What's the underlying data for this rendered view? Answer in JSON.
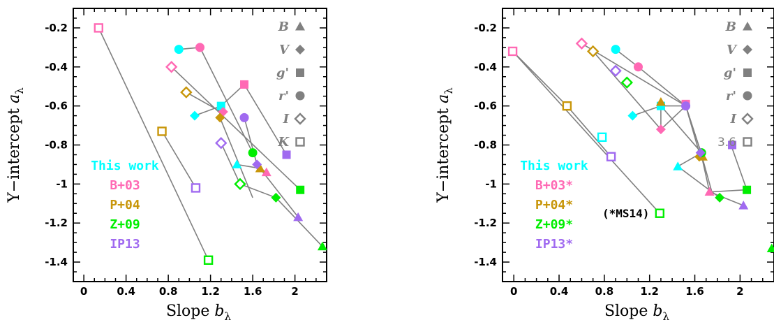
{
  "chart_data": [
    {
      "type": "scatter",
      "title": "",
      "xlabel": "Slope",
      "xlabel_symbol": "b",
      "xlabel_sub": "λ",
      "ylabel": "Y−intercept",
      "ylabel_symbol": "a",
      "ylabel_sub": "λ",
      "xlim": [
        -0.1,
        2.3
      ],
      "ylim": [
        -1.5,
        -0.1
      ],
      "xticks": [
        0,
        0.4,
        0.8,
        1.2,
        1.6,
        2
      ],
      "xtick_labels": [
        "0",
        "0.4",
        "0.8",
        "1.2",
        "1.6",
        "2"
      ],
      "yticks": [
        -0.2,
        -0.4,
        -0.6,
        -0.8,
        -1,
        -1.2,
        -1.4
      ],
      "ytick_labels": [
        "-0.2",
        "-0.4",
        "-0.6",
        "-0.8",
        "-1",
        "-1.2",
        "-1.4"
      ],
      "grid": false,
      "legend": [
        {
          "label": "This work",
          "color": "#00ffff"
        },
        {
          "label": "B+03",
          "color": "#ff69b4"
        },
        {
          "label": "P+04",
          "color": "#c8960a"
        },
        {
          "label": "Z+09",
          "color": "#00ee00"
        },
        {
          "label": "IP13",
          "color": "#a06af0"
        }
      ],
      "legend_placement": "lower-left",
      "band_key": [
        {
          "label": "B",
          "marker": "triangle"
        },
        {
          "label": "V",
          "marker": "diamond"
        },
        {
          "label": "g'",
          "marker": "square"
        },
        {
          "label": "r'",
          "marker": "circle"
        },
        {
          "label": "I",
          "marker": "diamond-open"
        },
        {
          "label": "K",
          "marker": "square-open"
        }
      ],
      "note": "",
      "lines": [
        {
          "points": [
            [
              0.14,
              -0.2
            ],
            [
              1.18,
              -1.39
            ]
          ]
        },
        {
          "points": [
            [
              0.9,
              -0.31
            ],
            [
              1.1,
              -0.3
            ],
            [
              1.6,
              -0.84
            ]
          ]
        },
        {
          "points": [
            [
              0.83,
              -0.4
            ],
            [
              2.05,
              -1.03
            ]
          ]
        },
        {
          "points": [
            [
              0.74,
              -0.73
            ],
            [
              1.06,
              -1.02
            ]
          ]
        },
        {
          "points": [
            [
              1.05,
              -0.65
            ],
            [
              1.3,
              -0.6
            ]
          ]
        },
        {
          "points": [
            [
              1.3,
              -0.6
            ],
            [
              1.52,
              -0.49
            ],
            [
              1.92,
              -0.85
            ]
          ]
        },
        {
          "points": [
            [
              0.97,
              -0.53
            ],
            [
              1.3,
              -0.63
            ],
            [
              1.32,
              -0.65
            ]
          ]
        },
        {
          "points": [
            [
              1.29,
              -0.66
            ],
            [
              1.6,
              -1.07
            ]
          ]
        },
        {
          "points": [
            [
              1.45,
              -0.9
            ],
            [
              1.67,
              -0.92
            ],
            [
              1.73,
              -0.94
            ]
          ]
        },
        {
          "points": [
            [
              1.52,
              -0.66
            ],
            [
              1.64,
              -0.9
            ],
            [
              2.03,
              -1.17
            ]
          ]
        },
        {
          "points": [
            [
              1.3,
              -0.79
            ],
            [
              1.48,
              -1.0
            ],
            [
              1.82,
              -1.07
            ],
            [
              2.26,
              -1.32
            ]
          ]
        }
      ],
      "series": [
        {
          "name": "This work",
          "color": "#00ffff",
          "points": [
            {
              "band": "r'",
              "marker": "circle",
              "x": 0.9,
              "y": -0.31
            },
            {
              "band": "V",
              "marker": "diamond",
              "x": 1.05,
              "y": -0.65
            },
            {
              "band": "g'",
              "marker": "square",
              "x": 1.3,
              "y": -0.6
            },
            {
              "band": "B",
              "marker": "triangle",
              "x": 1.45,
              "y": -0.9
            }
          ]
        },
        {
          "name": "B+03",
          "color": "#ff69b4",
          "points": [
            {
              "band": "K",
              "marker": "square-open",
              "x": 0.14,
              "y": -0.2
            },
            {
              "band": "I",
              "marker": "diamond-open",
              "x": 0.83,
              "y": -0.4
            },
            {
              "band": "r'",
              "marker": "circle",
              "x": 1.1,
              "y": -0.3
            },
            {
              "band": "V",
              "marker": "diamond",
              "x": 1.32,
              "y": -0.63
            },
            {
              "band": "g'",
              "marker": "square",
              "x": 1.52,
              "y": -0.49
            },
            {
              "band": "B",
              "marker": "triangle",
              "x": 1.73,
              "y": -0.94
            }
          ]
        },
        {
          "name": "P+04",
          "color": "#c8960a",
          "points": [
            {
              "band": "K",
              "marker": "square-open",
              "x": 0.74,
              "y": -0.73
            },
            {
              "band": "I",
              "marker": "diamond-open",
              "x": 0.97,
              "y": -0.53
            },
            {
              "band": "V",
              "marker": "diamond",
              "x": 1.29,
              "y": -0.66
            },
            {
              "band": "B",
              "marker": "triangle",
              "x": 1.67,
              "y": -0.92
            }
          ]
        },
        {
          "name": "Z+09",
          "color": "#00ee00",
          "points": [
            {
              "band": "K",
              "marker": "square-open",
              "x": 1.18,
              "y": -1.39
            },
            {
              "band": "I",
              "marker": "diamond-open",
              "x": 1.48,
              "y": -1.0
            },
            {
              "band": "r'",
              "marker": "circle",
              "x": 1.6,
              "y": -0.84
            },
            {
              "band": "V",
              "marker": "diamond",
              "x": 1.82,
              "y": -1.07
            },
            {
              "band": "g'",
              "marker": "square",
              "x": 2.05,
              "y": -1.03
            },
            {
              "band": "B",
              "marker": "triangle",
              "x": 2.26,
              "y": -1.32
            }
          ]
        },
        {
          "name": "IP13",
          "color": "#a06af0",
          "points": [
            {
              "band": "K",
              "marker": "square-open",
              "x": 1.06,
              "y": -1.02
            },
            {
              "band": "I",
              "marker": "diamond-open",
              "x": 1.3,
              "y": -0.79
            },
            {
              "band": "r'",
              "marker": "circle",
              "x": 1.52,
              "y": -0.66
            },
            {
              "band": "V",
              "marker": "diamond",
              "x": 1.64,
              "y": -0.9
            },
            {
              "band": "g'",
              "marker": "square",
              "x": 1.92,
              "y": -0.85
            },
            {
              "band": "B",
              "marker": "triangle",
              "x": 2.03,
              "y": -1.17
            }
          ]
        }
      ]
    },
    {
      "type": "scatter",
      "title": "",
      "xlabel": "Slope",
      "xlabel_symbol": "b",
      "xlabel_sub": "λ",
      "ylabel": "Y−intercept",
      "ylabel_symbol": "a",
      "ylabel_sub": "λ",
      "xlim": [
        -0.1,
        2.3
      ],
      "ylim": [
        -1.5,
        -0.1
      ],
      "xticks": [
        0,
        0.4,
        0.8,
        1.2,
        1.6,
        2
      ],
      "xtick_labels": [
        "0",
        "0.4",
        "0.8",
        "1.2",
        "1.6",
        "2"
      ],
      "yticks": [
        -0.2,
        -0.4,
        -0.6,
        -0.8,
        -1,
        -1.2,
        -1.4
      ],
      "ytick_labels": [
        "-0.2",
        "-0.4",
        "-0.6",
        "-0.8",
        "-1",
        "-1.2",
        "-1.4"
      ],
      "grid": false,
      "legend": [
        {
          "label": "This work",
          "color": "#00ffff"
        },
        {
          "label": "B+03*",
          "color": "#ff69b4"
        },
        {
          "label": "P+04*",
          "color": "#c8960a"
        },
        {
          "label": "Z+09*",
          "color": "#00ee00"
        },
        {
          "label": "IP13*",
          "color": "#a06af0"
        }
      ],
      "legend_placement": "lower-left",
      "band_key": [
        {
          "label": "B",
          "marker": "triangle"
        },
        {
          "label": "V",
          "marker": "diamond"
        },
        {
          "label": "g'",
          "marker": "square"
        },
        {
          "label": "r'",
          "marker": "circle"
        },
        {
          "label": "I",
          "marker": "diamond-open"
        },
        {
          "label": "3.6",
          "marker": "square-open"
        }
      ],
      "note": "(*MS14)",
      "lines": [
        {
          "points": [
            [
              -0.01,
              -0.32
            ],
            [
              1.29,
              -1.15
            ]
          ]
        },
        {
          "points": [
            [
              -0.01,
              -0.32
            ],
            [
              0.47,
              -0.6
            ],
            [
              0.86,
              -0.86
            ]
          ]
        },
        {
          "points": [
            [
              0.6,
              -0.28
            ],
            [
              1.52,
              -0.6
            ]
          ]
        },
        {
          "points": [
            [
              0.7,
              -0.32
            ],
            [
              1.3,
              -0.72
            ],
            [
              1.52,
              -0.6
            ],
            [
              1.65,
              -0.83
            ],
            [
              1.73,
              -1.04
            ],
            [
              2.03,
              -1.11
            ]
          ]
        },
        {
          "points": [
            [
              0.9,
              -0.31
            ],
            [
              1.1,
              -0.4
            ],
            [
              1.52,
              -0.6
            ],
            [
              1.65,
              -0.83
            ],
            [
              1.75,
              -1.04
            ],
            [
              2.05,
              -1.03
            ]
          ]
        },
        {
          "points": [
            [
              1.05,
              -0.65
            ],
            [
              1.3,
              -0.6
            ],
            [
              1.66,
              -0.84
            ],
            [
              1.45,
              -0.91
            ],
            [
              1.82,
              -1.07
            ]
          ]
        },
        {
          "points": [
            [
              1.3,
              -0.6
            ],
            [
              1.3,
              -0.6
            ]
          ]
        },
        {
          "points": [
            [
              1.3,
              -0.6
            ],
            [
              1.52,
              -0.6
            ],
            [
              1.65,
              -0.86
            ]
          ]
        },
        {
          "points": [
            [
              1.3,
              -0.6
            ],
            [
              1.3,
              -0.72
            ]
          ]
        },
        {
          "points": [
            [
              1.92,
              -0.8
            ],
            [
              2.06,
              -1.03
            ]
          ]
        }
      ],
      "series": [
        {
          "name": "This work",
          "color": "#00ffff",
          "points": [
            {
              "band": "r'",
              "marker": "circle",
              "x": 0.9,
              "y": -0.31
            },
            {
              "band": "V",
              "marker": "diamond",
              "x": 1.05,
              "y": -0.65
            },
            {
              "band": "g'",
              "marker": "square",
              "x": 1.3,
              "y": -0.6
            },
            {
              "band": "B",
              "marker": "triangle",
              "x": 1.45,
              "y": -0.91
            },
            {
              "band": "3.6",
              "marker": "square-open",
              "x": 0.78,
              "y": -0.76
            }
          ]
        },
        {
          "name": "B+03*",
          "color": "#ff69b4",
          "points": [
            {
              "band": "3.6",
              "marker": "square-open",
              "x": -0.01,
              "y": -0.32
            },
            {
              "band": "I",
              "marker": "diamond-open",
              "x": 0.6,
              "y": -0.28
            },
            {
              "band": "r'",
              "marker": "circle",
              "x": 1.1,
              "y": -0.4
            },
            {
              "band": "V",
              "marker": "diamond",
              "x": 1.3,
              "y": -0.72
            },
            {
              "band": "g'",
              "marker": "square",
              "x": 1.52,
              "y": -0.59
            },
            {
              "band": "B",
              "marker": "triangle",
              "x": 1.73,
              "y": -1.04
            }
          ]
        },
        {
          "name": "P+04*",
          "color": "#c8960a",
          "points": [
            {
              "band": "3.6",
              "marker": "square-open",
              "x": 0.47,
              "y": -0.6
            },
            {
              "band": "I",
              "marker": "diamond-open",
              "x": 0.7,
              "y": -0.32
            },
            {
              "band": "V",
              "marker": "diamond",
              "x": 1.64,
              "y": -0.86
            },
            {
              "band": "B",
              "marker": "triangle",
              "x": 1.3,
              "y": -0.58
            },
            {
              "band": "B",
              "marker": "triangle",
              "x": 1.67,
              "y": -0.86
            }
          ]
        },
        {
          "name": "Z+09*",
          "color": "#00ee00",
          "points": [
            {
              "band": "3.6",
              "marker": "square-open",
              "x": 1.29,
              "y": -1.15
            },
            {
              "band": "I",
              "marker": "diamond-open",
              "x": 1.0,
              "y": -0.48
            },
            {
              "band": "r'",
              "marker": "circle",
              "x": 1.66,
              "y": -0.84
            },
            {
              "band": "V",
              "marker": "diamond",
              "x": 1.82,
              "y": -1.07
            },
            {
              "band": "g'",
              "marker": "square",
              "x": 2.06,
              "y": -1.03
            },
            {
              "band": "B",
              "marker": "triangle",
              "x": 2.28,
              "y": -1.33
            }
          ]
        },
        {
          "name": "IP13*",
          "color": "#a06af0",
          "points": [
            {
              "band": "3.6",
              "marker": "square-open",
              "x": 0.86,
              "y": -0.86
            },
            {
              "band": "I",
              "marker": "diamond-open",
              "x": 0.9,
              "y": -0.42
            },
            {
              "band": "r'",
              "marker": "circle",
              "x": 1.52,
              "y": -0.6
            },
            {
              "band": "V",
              "marker": "diamond",
              "x": 1.65,
              "y": -0.84
            },
            {
              "band": "g'",
              "marker": "square",
              "x": 1.93,
              "y": -0.8
            },
            {
              "band": "B",
              "marker": "triangle",
              "x": 2.03,
              "y": -1.11
            }
          ]
        }
      ]
    }
  ]
}
